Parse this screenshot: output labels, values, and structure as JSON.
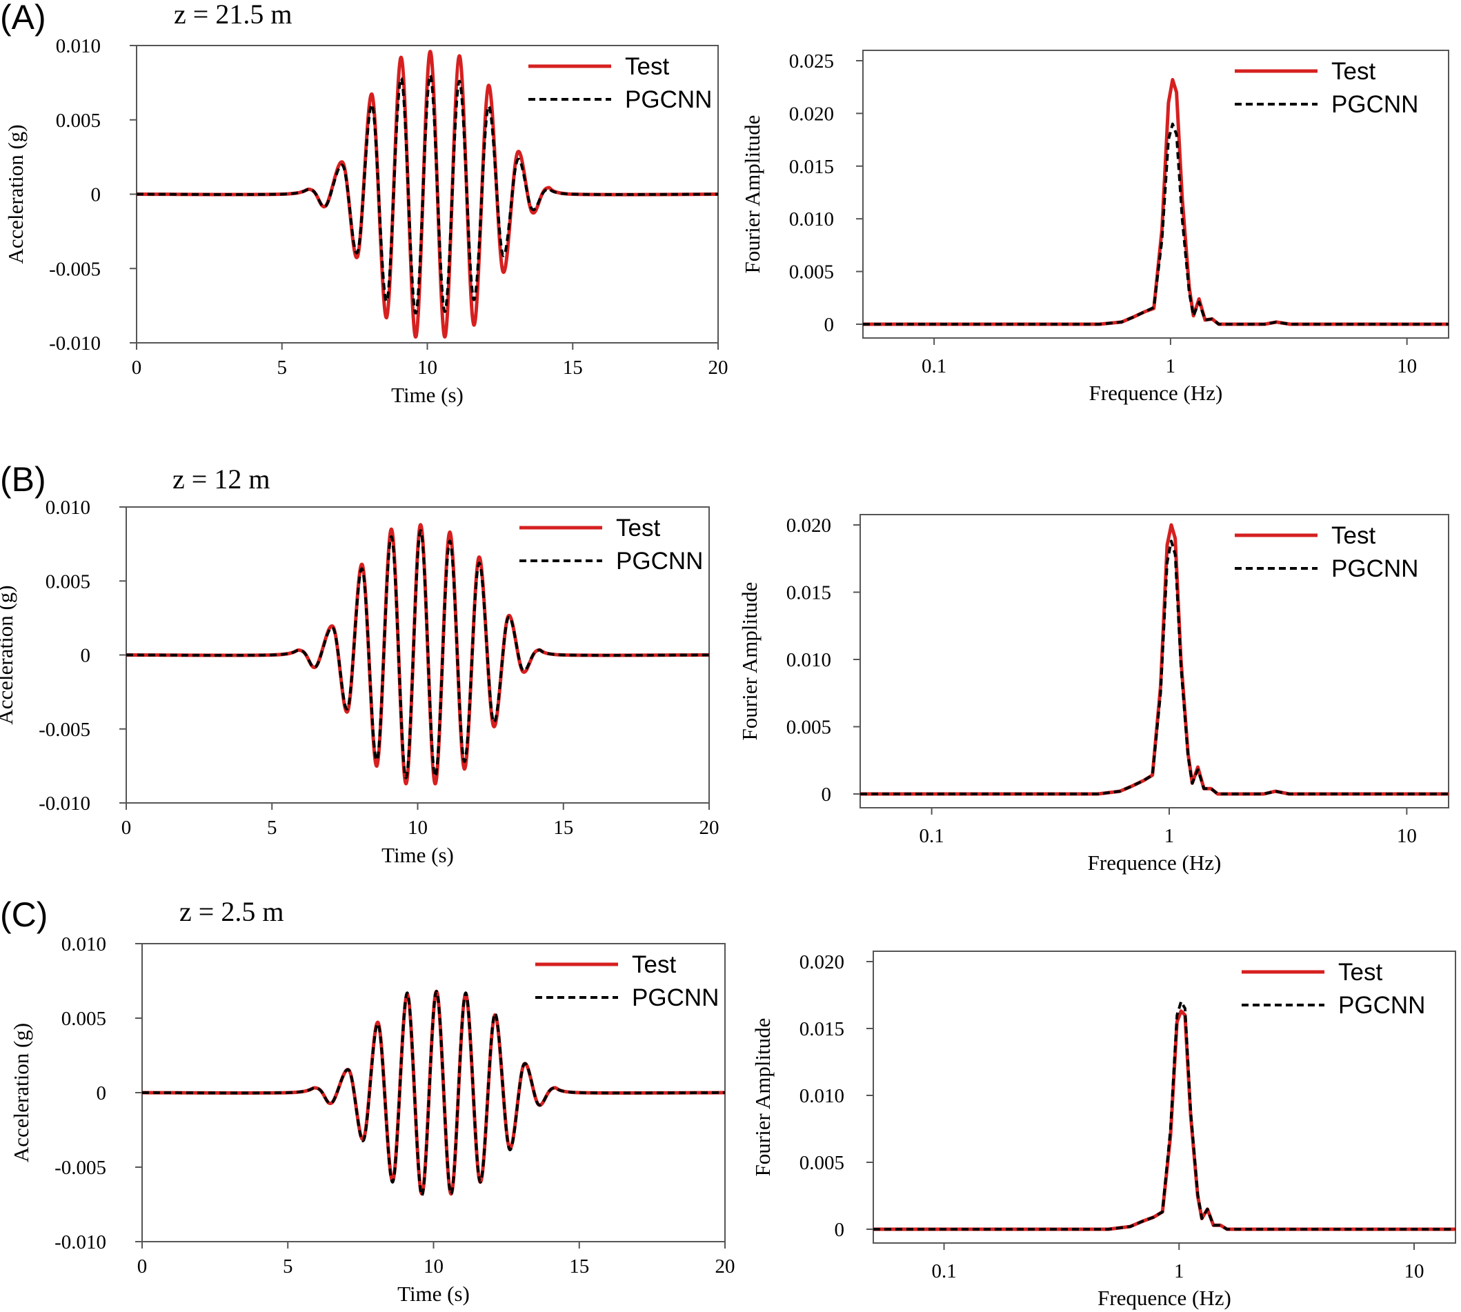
{
  "colors": {
    "test": "#d62020",
    "pgcnn": "#000000",
    "frame": "#555555"
  },
  "panels": [
    {
      "letter": "(A)",
      "depth": "z = 21.5 m",
      "time": {
        "xlabel": "Time (s)",
        "ylabel": "Acceleration (g)",
        "ylabel_italic": "g",
        "xlim": [
          0,
          20
        ],
        "ylim": [
          -0.01,
          0.01
        ],
        "xticks": [
          "0",
          "5",
          "10",
          "15",
          "20"
        ],
        "yticks": [
          "0.010",
          "0.005",
          "0",
          "-0.005",
          "-0.010"
        ]
      },
      "freq": {
        "xlabel": "Frequence (Hz)",
        "ylabel": "Fourier Amplitude",
        "ylim": [
          0,
          0.025
        ],
        "xticks": [
          "0.1",
          "1",
          "10"
        ],
        "yticks": [
          "0.025",
          "0.020",
          "0.015",
          "0.010",
          "0.005",
          "0"
        ]
      },
      "legend": [
        "Test",
        "PGCNN"
      ]
    },
    {
      "letter": "(B)",
      "depth": "z = 12 m",
      "time": {
        "xlabel": "Time (s)",
        "ylabel": "Acceleration (g)",
        "ylabel_italic": "g",
        "xlim": [
          0,
          20
        ],
        "ylim": [
          -0.01,
          0.01
        ],
        "xticks": [
          "0",
          "5",
          "10",
          "15",
          "20"
        ],
        "yticks": [
          "0.010",
          "0.005",
          "0",
          "-0.005",
          "-0.010"
        ]
      },
      "freq": {
        "xlabel": "Frequence (Hz)",
        "ylabel": "Fourier Amplitude",
        "ylim": [
          0,
          0.02
        ],
        "xticks": [
          "0.1",
          "1",
          "10"
        ],
        "yticks": [
          "0.020",
          "0.015",
          "0.010",
          "0.005",
          "0"
        ]
      },
      "legend": [
        "Test",
        "PGCNN"
      ]
    },
    {
      "letter": "(C)",
      "depth": "z = 2.5 m",
      "time": {
        "xlabel": "Time (s)",
        "ylabel": "Acceleration (g)",
        "ylabel_italic": "g",
        "xlim": [
          0,
          20
        ],
        "ylim": [
          -0.01,
          0.01
        ],
        "xticks": [
          "0",
          "5",
          "10",
          "15",
          "20"
        ],
        "yticks": [
          "0.010",
          "0.005",
          "0",
          "-0.005",
          "-0.010"
        ]
      },
      "freq": {
        "xlabel": "Frequence (Hz)",
        "ylabel": "Fourier Amplitude",
        "ylim": [
          0,
          0.02
        ],
        "xticks": [
          "0.1",
          "1",
          "10"
        ],
        "yticks": [
          "0.020",
          "0.015",
          "0.010",
          "0.005",
          "0"
        ]
      },
      "legend": [
        "Test",
        "PGCNN"
      ]
    }
  ],
  "chart_data": [
    {
      "type": "line",
      "panel": "(A)",
      "xlim": [
        0,
        20
      ],
      "ylim": [
        -0.01,
        0.01
      ],
      "series": [
        {
          "name": "Test",
          "x": [
            0,
            5,
            6,
            6.5,
            7.1,
            7.6,
            8.1,
            8.6,
            9.1,
            9.6,
            10.1,
            10.6,
            11.1,
            11.6,
            12.1,
            12.6,
            13.1,
            13.6,
            14.1,
            15,
            20
          ],
          "y": [
            0,
            0,
            0.0003,
            -0.0008,
            0.0021,
            -0.0042,
            0.0067,
            -0.0083,
            0.0092,
            -0.0096,
            0.0096,
            -0.0096,
            0.0093,
            -0.0088,
            0.0073,
            -0.0052,
            0.0028,
            -0.0012,
            0.0004,
            0,
            0
          ]
        },
        {
          "name": "PGCNN",
          "x": [
            0,
            5,
            6,
            6.5,
            7.1,
            7.6,
            8.1,
            8.6,
            9.1,
            9.6,
            10.1,
            10.6,
            11.1,
            11.6,
            12.1,
            12.6,
            13.1,
            13.6,
            14.1,
            15,
            20
          ],
          "y": [
            0,
            0,
            0.0003,
            -0.0008,
            0.0019,
            -0.0039,
            0.006,
            -0.0072,
            0.0078,
            -0.008,
            0.008,
            -0.0079,
            0.0076,
            -0.0071,
            0.0059,
            -0.0041,
            0.0023,
            -0.001,
            0.0003,
            0,
            0
          ]
        }
      ]
    },
    {
      "type": "line",
      "panel": "(A)",
      "xscale": "log",
      "xlim": [
        0.05,
        15
      ],
      "ylim": [
        0,
        0.025
      ],
      "series": [
        {
          "name": "Test",
          "x": [
            0.05,
            0.5,
            0.62,
            0.7,
            0.78,
            0.85,
            0.92,
            0.98,
            1.02,
            1.06,
            1.12,
            1.2,
            1.25,
            1.32,
            1.4,
            1.5,
            1.6,
            1.8,
            2.5,
            2.8,
            3.2,
            15
          ],
          "y": [
            0,
            0,
            0.0002,
            0.0007,
            0.0012,
            0.0015,
            0.009,
            0.021,
            0.0232,
            0.022,
            0.012,
            0.0035,
            0.0008,
            0.0024,
            0.0004,
            0.0005,
            0,
            0,
            0,
            0.0002,
            0,
            0
          ]
        },
        {
          "name": "PGCNN",
          "x": [
            0.05,
            0.5,
            0.62,
            0.7,
            0.78,
            0.85,
            0.92,
            0.98,
            1.02,
            1.06,
            1.12,
            1.2,
            1.25,
            1.32,
            1.4,
            1.5,
            1.6,
            1.8,
            2.5,
            2.8,
            3.2,
            15
          ],
          "y": [
            0,
            0,
            0.0002,
            0.0007,
            0.0012,
            0.0016,
            0.008,
            0.0175,
            0.019,
            0.018,
            0.01,
            0.003,
            0.0008,
            0.0021,
            0.0004,
            0.0005,
            0,
            0,
            0,
            0.0002,
            0,
            0
          ]
        }
      ]
    },
    {
      "type": "line",
      "panel": "(B)",
      "xlim": [
        0,
        20
      ],
      "ylim": [
        -0.01,
        0.01
      ],
      "series": [
        {
          "name": "Test",
          "x": [
            0,
            5,
            6,
            6.5,
            7.1,
            7.6,
            8.1,
            8.6,
            9.1,
            9.6,
            10.1,
            10.6,
            11.1,
            11.6,
            12.1,
            12.6,
            13.1,
            13.6,
            14.1,
            15,
            20
          ],
          "y": [
            0,
            0,
            0.0003,
            -0.0008,
            0.0019,
            -0.0038,
            0.0061,
            -0.0075,
            0.0085,
            -0.0087,
            0.0088,
            -0.0087,
            0.0083,
            -0.0077,
            0.0066,
            -0.0048,
            0.0026,
            -0.0011,
            0.0003,
            0,
            0
          ]
        },
        {
          "name": "PGCNN",
          "x": [
            0,
            5,
            6,
            6.5,
            7.1,
            7.6,
            8.1,
            8.6,
            9.1,
            9.6,
            10.1,
            10.6,
            11.1,
            11.6,
            12.1,
            12.6,
            13.1,
            13.6,
            14.1,
            15,
            20
          ],
          "y": [
            0,
            0,
            0.0003,
            -0.0008,
            0.0018,
            -0.0036,
            0.0058,
            -0.0071,
            0.008,
            -0.0083,
            0.0084,
            -0.0082,
            0.0077,
            -0.0072,
            0.0062,
            -0.0045,
            0.0025,
            -0.001,
            0.0003,
            0,
            0
          ]
        }
      ]
    },
    {
      "type": "line",
      "panel": "(B)",
      "xscale": "log",
      "xlim": [
        0.05,
        15
      ],
      "ylim": [
        0,
        0.02
      ],
      "series": [
        {
          "name": "Test",
          "x": [
            0.05,
            0.5,
            0.62,
            0.7,
            0.78,
            0.85,
            0.92,
            0.98,
            1.02,
            1.06,
            1.12,
            1.2,
            1.25,
            1.32,
            1.4,
            1.5,
            1.6,
            1.8,
            2.5,
            2.8,
            3.2,
            15
          ],
          "y": [
            0,
            0,
            0.0002,
            0.0006,
            0.001,
            0.0014,
            0.008,
            0.0185,
            0.02,
            0.019,
            0.01,
            0.003,
            0.0008,
            0.002,
            0.0004,
            0.0004,
            0,
            0,
            0,
            0.0002,
            0,
            0
          ]
        },
        {
          "name": "PGCNN",
          "x": [
            0.05,
            0.5,
            0.62,
            0.7,
            0.78,
            0.85,
            0.92,
            0.98,
            1.02,
            1.06,
            1.12,
            1.2,
            1.25,
            1.32,
            1.4,
            1.5,
            1.6,
            1.8,
            2.5,
            2.8,
            3.2,
            15
          ],
          "y": [
            0,
            0,
            0.0002,
            0.0006,
            0.001,
            0.0014,
            0.0075,
            0.0172,
            0.0188,
            0.0178,
            0.0095,
            0.0028,
            0.0008,
            0.0018,
            0.0004,
            0.0004,
            0,
            0,
            0,
            0.0002,
            0,
            0
          ]
        }
      ]
    },
    {
      "type": "line",
      "panel": "(C)",
      "xlim": [
        0,
        20
      ],
      "ylim": [
        -0.01,
        0.01
      ],
      "series": [
        {
          "name": "Test",
          "x": [
            0,
            5,
            6,
            6.5,
            7.1,
            7.6,
            8.1,
            8.6,
            9.1,
            9.6,
            10.1,
            10.6,
            11.1,
            11.6,
            12.1,
            12.6,
            13.1,
            13.6,
            14.1,
            15,
            20
          ],
          "y": [
            0,
            0,
            0.0003,
            -0.0007,
            0.0015,
            -0.0031,
            0.0047,
            -0.0059,
            0.0066,
            -0.0068,
            0.0068,
            -0.0068,
            0.0066,
            -0.006,
            0.0052,
            -0.0037,
            0.0019,
            -0.0008,
            0.0003,
            0,
            0
          ]
        },
        {
          "name": "PGCNN",
          "x": [
            0,
            5,
            6,
            6.5,
            7.1,
            7.6,
            8.1,
            8.6,
            9.1,
            9.6,
            10.1,
            10.6,
            11.1,
            11.6,
            12.1,
            12.6,
            13.1,
            13.6,
            14.1,
            15,
            20
          ],
          "y": [
            0,
            0,
            0.0003,
            -0.0007,
            0.0015,
            -0.0032,
            0.0046,
            -0.006,
            0.0067,
            -0.0069,
            0.0068,
            -0.0068,
            0.0067,
            -0.006,
            0.0053,
            -0.0038,
            0.0019,
            -0.0008,
            0.0003,
            0,
            0
          ]
        }
      ]
    },
    {
      "type": "line",
      "panel": "(C)",
      "xscale": "log",
      "xlim": [
        0.05,
        15
      ],
      "ylim": [
        0,
        0.02
      ],
      "series": [
        {
          "name": "Test",
          "x": [
            0.05,
            0.5,
            0.62,
            0.7,
            0.78,
            0.85,
            0.92,
            0.98,
            1.02,
            1.06,
            1.12,
            1.2,
            1.25,
            1.32,
            1.4,
            1.5,
            1.6,
            1.8,
            2.5,
            15
          ],
          "y": [
            0,
            0,
            0.0002,
            0.0006,
            0.0009,
            0.0013,
            0.007,
            0.0155,
            0.0163,
            0.016,
            0.0085,
            0.0025,
            0.0008,
            0.0015,
            0.0003,
            0.0003,
            0,
            0,
            0,
            0
          ]
        },
        {
          "name": "PGCNN",
          "x": [
            0.05,
            0.5,
            0.62,
            0.7,
            0.78,
            0.85,
            0.92,
            0.98,
            1.02,
            1.06,
            1.12,
            1.2,
            1.25,
            1.32,
            1.4,
            1.5,
            1.6,
            1.8,
            2.5,
            15
          ],
          "y": [
            0,
            0,
            0.0002,
            0.0006,
            0.0009,
            0.0013,
            0.0075,
            0.016,
            0.017,
            0.0165,
            0.0088,
            0.0026,
            0.0008,
            0.0015,
            0.0003,
            0.0003,
            0,
            0,
            0,
            0
          ]
        }
      ]
    }
  ]
}
